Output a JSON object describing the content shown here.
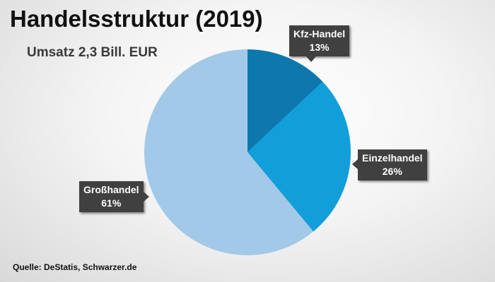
{
  "title": "Handelsstruktur (2019)",
  "subtitle": "Umsatz 2,3 Bill. EUR",
  "source": "Quelle: DeStatis, Schwarzer.de",
  "chart_data": {
    "type": "pie",
    "title": "Handelsstruktur (2019)",
    "subtitle": "Umsatz 2,3 Bill. EUR",
    "slices": [
      {
        "label": "Kfz-Handel",
        "value": 13,
        "value_label": "13%",
        "color": "#0d78ad"
      },
      {
        "label": "Einzelhandel",
        "value": 26,
        "value_label": "26%",
        "color": "#129fd9"
      },
      {
        "label": "Großhandel",
        "value": 61,
        "value_label": "61%",
        "color": "#a3c9e8"
      }
    ]
  }
}
